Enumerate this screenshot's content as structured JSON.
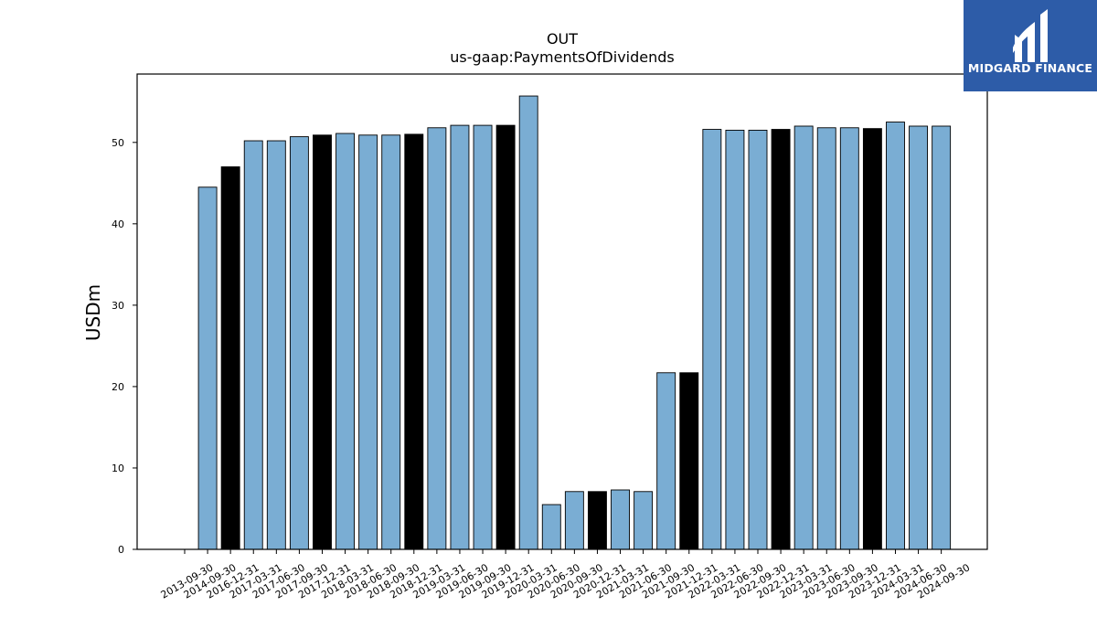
{
  "brand": {
    "name": "MIDGARD FINANCE",
    "color": "#2d5ca8"
  },
  "colors": {
    "bar_default": "#7aadd3",
    "bar_highlight": "#000000",
    "edge": "#000000"
  },
  "chart_data": {
    "type": "bar",
    "title": "OUT",
    "subtitle": "us-gaap:PaymentsOfDividends",
    "xlabel": "",
    "ylabel": "USDm",
    "ylim": [
      0,
      58.4
    ],
    "yticks": [
      0,
      10,
      20,
      30,
      40,
      50
    ],
    "grid": false,
    "legend": "none",
    "categories": [
      "2013-09-30",
      "2014-09-30",
      "2016-12-31",
      "2017-03-31",
      "2017-06-30",
      "2017-09-30",
      "2017-12-31",
      "2018-03-31",
      "2018-06-30",
      "2018-09-30",
      "2018-12-31",
      "2019-03-31",
      "2019-06-30",
      "2019-09-30",
      "2019-12-31",
      "2020-03-31",
      "2020-06-30",
      "2020-09-30",
      "2020-12-31",
      "2021-03-31",
      "2021-06-30",
      "2021-09-30",
      "2021-12-31",
      "2022-03-31",
      "2022-06-30",
      "2022-09-30",
      "2022-12-31",
      "2023-03-31",
      "2023-06-30",
      "2023-09-30",
      "2023-12-31",
      "2024-03-31",
      "2024-06-30",
      "2024-09-30"
    ],
    "values": [
      null,
      44.5,
      47.0,
      50.2,
      50.2,
      50.7,
      50.9,
      51.1,
      50.9,
      50.9,
      51.0,
      51.8,
      52.1,
      52.1,
      52.1,
      55.7,
      5.5,
      7.1,
      7.1,
      7.3,
      7.1,
      21.7,
      21.7,
      51.6,
      51.5,
      51.5,
      51.6,
      52.0,
      51.8,
      51.8,
      51.7,
      52.5,
      52.0,
      52.0
    ],
    "highlight": [
      false,
      false,
      true,
      false,
      false,
      false,
      true,
      false,
      false,
      false,
      true,
      false,
      false,
      false,
      true,
      false,
      false,
      false,
      true,
      false,
      false,
      false,
      true,
      false,
      false,
      false,
      true,
      false,
      false,
      false,
      true,
      false,
      false,
      false
    ]
  }
}
